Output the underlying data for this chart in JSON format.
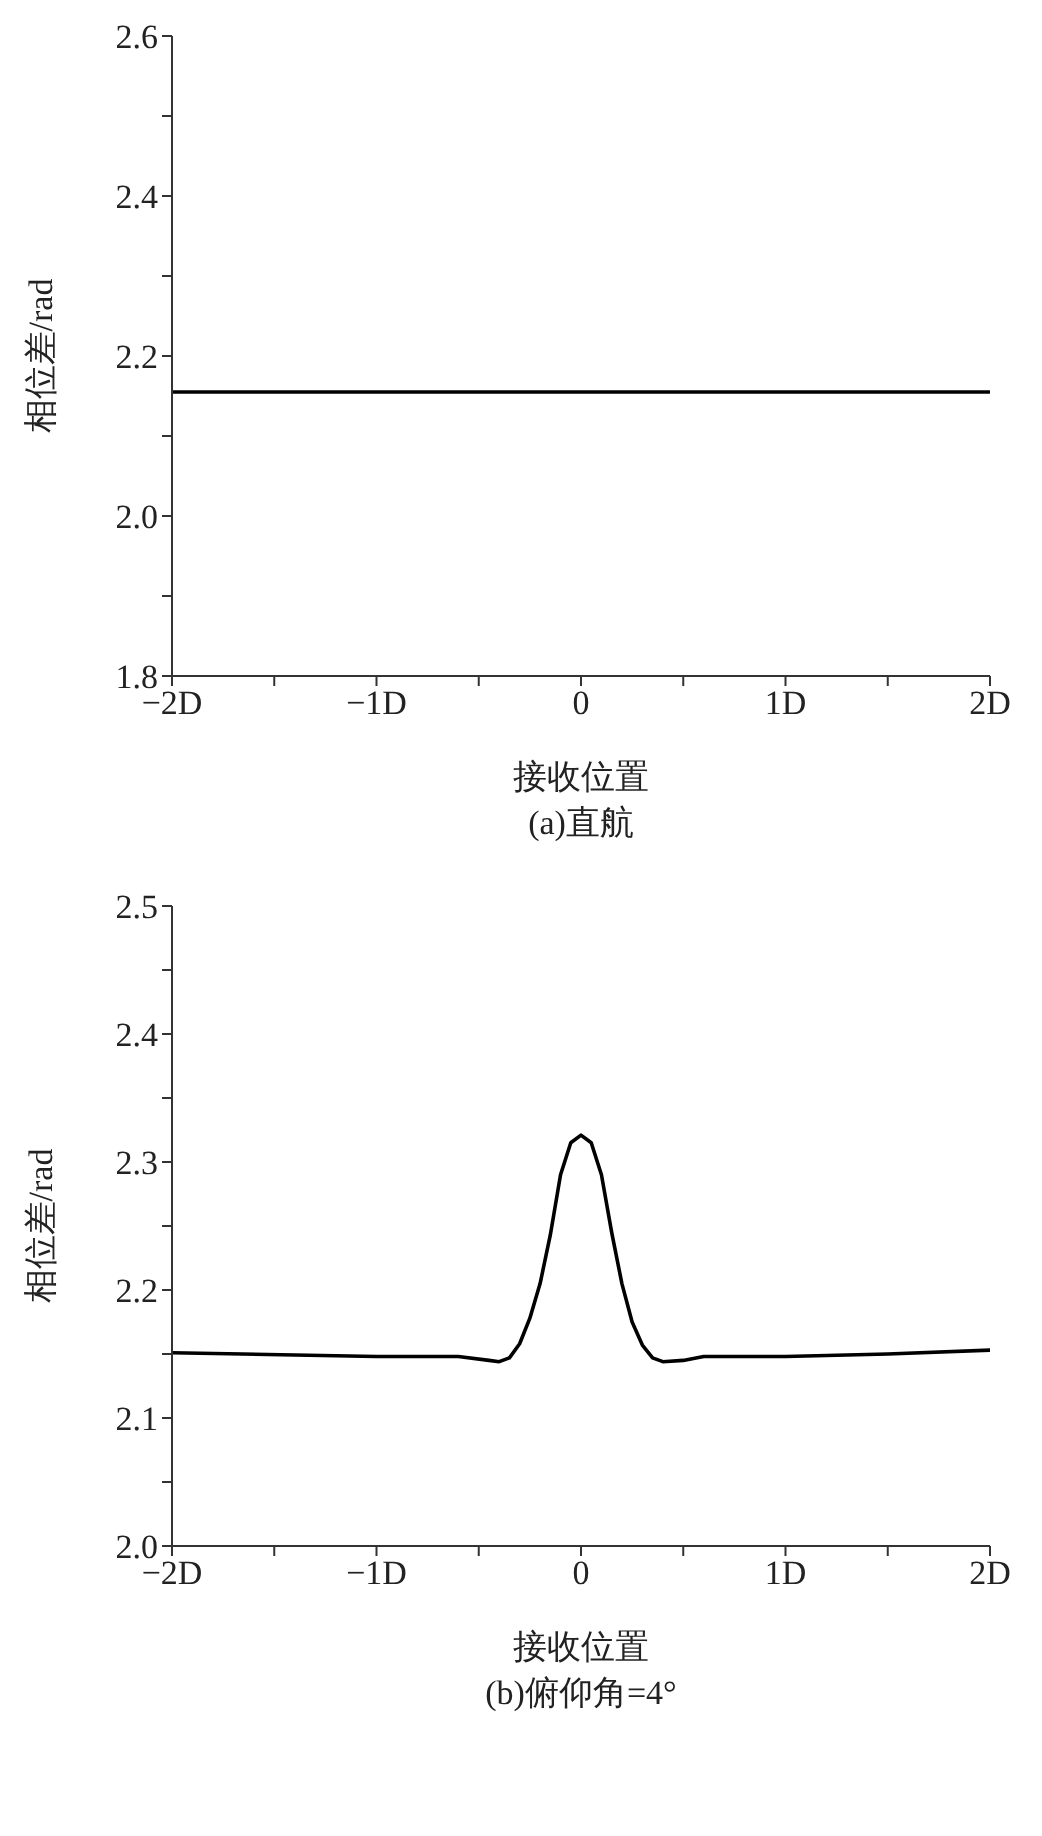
{
  "chart_data": [
    {
      "type": "line",
      "title": "(a)直航",
      "xlabel": "接收位置",
      "ylabel": "相位差/rad",
      "xlim": [
        -2,
        2
      ],
      "ylim": [
        1.8,
        2.6
      ],
      "xticks": [
        {
          "value": -2,
          "label": "−2D"
        },
        {
          "value": -1.5,
          "label": null
        },
        {
          "value": -1,
          "label": "−1D"
        },
        {
          "value": -0.5,
          "label": null
        },
        0,
        {
          "value": 0.5,
          "label": null
        },
        {
          "value": 1,
          "label": "1D"
        },
        {
          "value": 1.5,
          "label": null
        },
        {
          "value": 2,
          "label": "2D"
        }
      ],
      "yticks": [
        {
          "value": 1.8,
          "label": "1.8"
        },
        {
          "value": 1.9,
          "label": null
        },
        {
          "value": 2.0,
          "label": "2.0"
        },
        {
          "value": 2.1,
          "label": null
        },
        {
          "value": 2.2,
          "label": "2.2"
        },
        {
          "value": 2.3,
          "label": null
        },
        {
          "value": 2.4,
          "label": "2.4"
        },
        {
          "value": 2.5,
          "label": null
        },
        {
          "value": 2.6,
          "label": "2.6"
        }
      ],
      "x": [
        -2,
        -1,
        0,
        1,
        2
      ],
      "series": [
        {
          "color": "#000000",
          "values": [
            2.155,
            2.155,
            2.155,
            2.155,
            2.155
          ]
        }
      ]
    },
    {
      "type": "line",
      "title": "(b)俯仰角=4°",
      "xlabel": "接收位置",
      "ylabel": "相位差/rad",
      "xlim": [
        -2,
        2
      ],
      "ylim": [
        2.0,
        2.5
      ],
      "xticks": [
        {
          "value": -2,
          "label": "−2D"
        },
        {
          "value": -1.5,
          "label": null
        },
        {
          "value": -1,
          "label": "−1D"
        },
        {
          "value": -0.5,
          "label": null
        },
        0,
        {
          "value": 0.5,
          "label": null
        },
        {
          "value": 1,
          "label": "1D"
        },
        {
          "value": 1.5,
          "label": null
        },
        {
          "value": 2,
          "label": "2D"
        }
      ],
      "yticks": [
        {
          "value": 2.0,
          "label": "2.0"
        },
        {
          "value": 2.05,
          "label": null
        },
        {
          "value": 2.1,
          "label": "2.1"
        },
        {
          "value": 2.15,
          "label": null
        },
        {
          "value": 2.2,
          "label": "2.2"
        },
        {
          "value": 2.25,
          "label": null
        },
        {
          "value": 2.3,
          "label": "2.3"
        },
        {
          "value": 2.35,
          "label": null
        },
        {
          "value": 2.4,
          "label": "2.4"
        },
        {
          "value": 2.45,
          "label": null
        },
        {
          "value": 2.5,
          "label": "2.5"
        }
      ],
      "x": [
        -2,
        -1,
        -0.6,
        -0.45,
        -0.4,
        -0.35,
        -0.3,
        -0.25,
        -0.2,
        -0.15,
        -0.1,
        -0.05,
        0,
        0.05,
        0.1,
        0.15,
        0.2,
        0.25,
        0.3,
        0.35,
        0.4,
        0.5,
        0.6,
        1,
        1.5,
        2
      ],
      "series": [
        {
          "color": "#000000",
          "values": [
            2.151,
            2.148,
            2.148,
            2.145,
            2.144,
            2.147,
            2.158,
            2.178,
            2.205,
            2.243,
            2.29,
            2.315,
            2.321,
            2.315,
            2.29,
            2.245,
            2.205,
            2.175,
            2.157,
            2.147,
            2.144,
            2.145,
            2.148,
            2.148,
            2.15,
            2.153
          ]
        }
      ]
    }
  ]
}
